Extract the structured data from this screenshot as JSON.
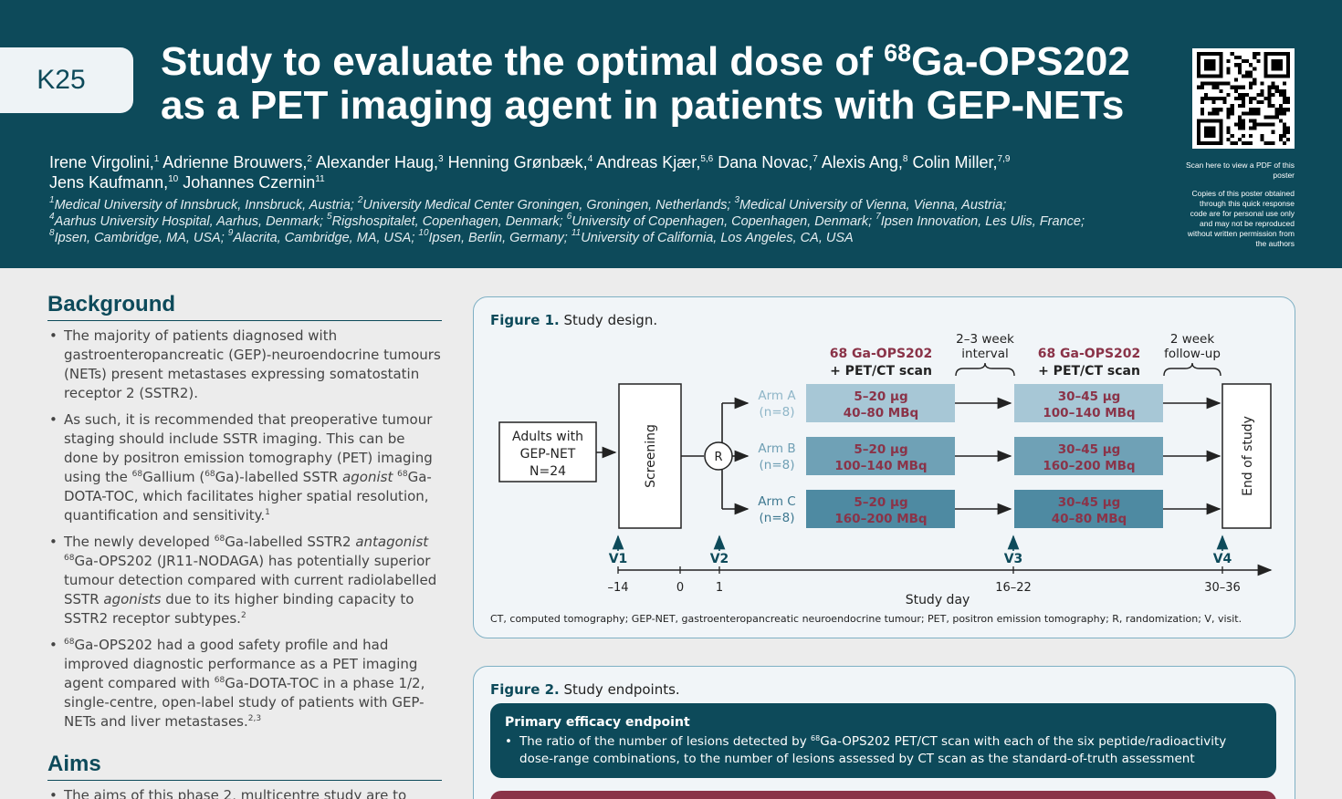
{
  "poster": {
    "badge": "K25",
    "title_line1_pre": "Study to evaluate the optimal dose of ",
    "title_line1_sup": "68",
    "title_line1_post": "Ga-OPS202",
    "title_line2": "as a PET imaging agent in patients with GEP-NETs",
    "authors": [
      {
        "name": "Irene Virgolini,",
        "sup": "1"
      },
      {
        "name": " Adrienne Brouwers,",
        "sup": "2"
      },
      {
        "name": " Alexander Haug,",
        "sup": "3"
      },
      {
        "name": " Henning Grønbæk,",
        "sup": "4"
      },
      {
        "name": " Andreas Kjær,",
        "sup": "5,6"
      },
      {
        "name": " Dana Novac,",
        "sup": "7"
      },
      {
        "name": " Alexis Ang,",
        "sup": "8"
      },
      {
        "name": " Colin Miller,",
        "sup": "7,9"
      },
      {
        "name": "Jens Kaufmann,",
        "sup": "10"
      },
      {
        "name": " Johannes Czernin",
        "sup": "11"
      }
    ],
    "affiliations": [
      [
        {
          "sup": "1",
          "text": "Medical University of Innsbruck, Innsbruck, Austria; "
        },
        {
          "sup": "2",
          "text": "University Medical Center Groningen, Groningen, Netherlands; "
        },
        {
          "sup": "3",
          "text": "Medical University of Vienna, Vienna, Austria;"
        }
      ],
      [
        {
          "sup": "4",
          "text": "Aarhus University Hospital, Aarhus, Denmark; "
        },
        {
          "sup": "5",
          "text": "Rigshospitalet, Copenhagen, Denmark; "
        },
        {
          "sup": "6",
          "text": "University of Copenhagen, Copenhagen, Denmark; "
        },
        {
          "sup": "7",
          "text": "Ipsen Innovation, Les Ulis, France;"
        }
      ],
      [
        {
          "sup": "8",
          "text": "Ipsen, Cambridge, MA, USA; "
        },
        {
          "sup": "9",
          "text": "Alacrita, Cambridge, MA, USA; "
        },
        {
          "sup": "10",
          "text": "Ipsen, Berlin, Germany; "
        },
        {
          "sup": "11",
          "text": "University of California, Los Angeles, CA, USA"
        }
      ]
    ],
    "qr_note": "Scan here to view a PDF of this poster",
    "copy_note": "Copies of this poster obtained through this quick response code are for personal use only and may not be reproduced without written permission from the authors"
  },
  "background": {
    "heading": "Background",
    "bullets": [
      [
        {
          "t": "The majority of patients diagnosed with gastroenteropancreatic (GEP)-neuroendocrine tumours (NETs) present metastases expressing somatostatin receptor 2 (SSTR2)."
        }
      ],
      [
        {
          "t": "As such, it is recommended that preoperative tumour staging should include SSTR imaging. This can be done by positron emission tomography (PET) imaging using the "
        },
        {
          "s": "68"
        },
        {
          "t": "Gallium ("
        },
        {
          "s": "68"
        },
        {
          "t": "Ga)-labelled SSTR "
        },
        {
          "i": "agonist"
        },
        {
          "t": " "
        },
        {
          "s": "68"
        },
        {
          "t": "Ga-DOTA-TOC, which facilitates higher spatial resolution, quantification and sensitivity."
        },
        {
          "s": "1"
        }
      ],
      [
        {
          "t": "The newly developed "
        },
        {
          "s": "68"
        },
        {
          "t": "Ga-labelled SSTR2 "
        },
        {
          "i": "antagonist"
        },
        {
          "t": " "
        },
        {
          "s": "68"
        },
        {
          "t": "Ga-OPS202 (JR11-NODAGA) has potentially superior tumour detection compared with current radiolabelled SSTR "
        },
        {
          "i": "agonists"
        },
        {
          "t": " due to its higher binding capacity to SSTR2 receptor subtypes."
        },
        {
          "s": "2"
        }
      ],
      [
        {
          "s": "68"
        },
        {
          "t": "Ga-OPS202 had a good safety profile and had improved diagnostic performance as a PET imaging agent compared with "
        },
        {
          "s": "68"
        },
        {
          "t": "Ga-DOTA-TOC in a phase 1/2, single-centre, open-label study of patients with GEP-NETs and liver metastases."
        },
        {
          "s": "2,3"
        }
      ]
    ]
  },
  "aims": {
    "heading": "Aims",
    "bullets": [
      [
        {
          "t": "The aims of this phase 2, multicentre study are to"
        }
      ]
    ]
  },
  "figure1": {
    "label": "Figure 1.",
    "caption": " Study design.",
    "adults_lines": [
      "Adults with",
      "GEP-NET",
      "N=24"
    ],
    "screening": "Screening",
    "randomization": "R",
    "end_of_study": "End of study",
    "scan1_header": [
      "Ga-OPS202",
      "+ PET/CT scan"
    ],
    "scan1_sup": "68",
    "scan2_header": [
      "Ga-OPS202",
      "+ PET/CT scan"
    ],
    "scan2_sup": "68",
    "interval": [
      "2–3 week",
      "interval"
    ],
    "followup": [
      "2 week",
      "follow-up"
    ],
    "arms": [
      {
        "name": "Arm A",
        "n": "(n=8)",
        "scan1": [
          "5–20 µg",
          "40–80 MBq"
        ],
        "scan2": [
          "30–45 µg",
          "100–140 MBq"
        ],
        "fill": "#a7c7d6",
        "text": "#8a3348",
        "labelcolor": "#8fb6c8"
      },
      {
        "name": "Arm B",
        "n": "(n=8)",
        "scan1": [
          "5–20 µg",
          "100–140 MBq"
        ],
        "scan2": [
          "30–45 µg",
          "160–200 MBq"
        ],
        "fill": "#6fa1b6",
        "text": "#8a3348",
        "labelcolor": "#6f9fb4"
      },
      {
        "name": "Arm C",
        "n": "(n=8)",
        "scan1": [
          "5–20 µg",
          "160–200 MBq"
        ],
        "scan2": [
          "30–45 µg",
          "40–80 MBq"
        ],
        "fill": "#4e8aa2",
        "text": "#8a3348",
        "labelcolor": "#3e7890"
      }
    ],
    "visits": [
      "V1",
      "V2",
      "V3",
      "V4"
    ],
    "ticks": [
      "–14",
      "0",
      "1",
      "16–22",
      "30–36"
    ],
    "axis_label": "Study day",
    "footnote": "CT, computed tomography; GEP-NET, gastroenteropancreatic neuroendocrine tumour; PET, positron emission tomography; R, randomization; V, visit."
  },
  "figure2": {
    "label": "Figure 2.",
    "caption": " Study endpoints.",
    "primary_heading": "Primary efficacy endpoint",
    "primary_pre": "The ratio of the number of lesions detected by ",
    "primary_sup": "68",
    "primary_post": "Ga-OPS202 PET/CT scan with each of the six peptide/radioactivity dose-range combinations, to the number of lesions assessed by CT scan as the standard-of-truth assessment"
  }
}
